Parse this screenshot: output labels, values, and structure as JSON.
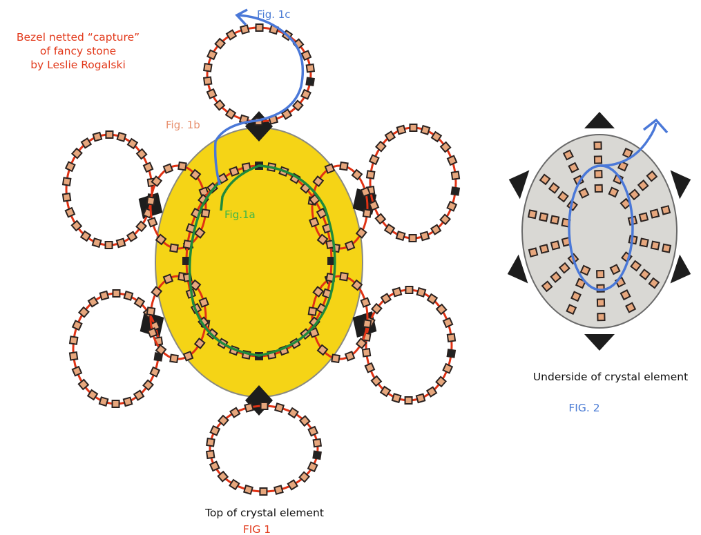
{
  "title_lines": [
    "Bezel netted “capture”",
    "of fancy stone",
    "by Leslie Rogalski"
  ],
  "labels": {
    "fig_1a": "Fig.1a",
    "fig_1b": "Fig. 1b",
    "fig_1c": "Fig. 1c",
    "top_caption": "Top of crystal element",
    "fig1_caption": "FIG 1",
    "underside_caption": "Underside of crystal element",
    "fig2_caption": "FIG. 2"
  },
  "colors": {
    "stone_gold": "#f5d416",
    "underside_grey": "#d9d8d4",
    "thread_red": "#e03214",
    "thread_green": "#1f8a3c",
    "thread_blue": "#4a78d8",
    "bead_fill": "#e7a77d",
    "bead_outline": "#2a2220",
    "prong_black": "#1d1d1d",
    "title_red": "#e23a1c",
    "fig1b_color": "#e8906e",
    "fig1a_color": "#3cb54a",
    "fig_blue": "#4a7bd4"
  }
}
